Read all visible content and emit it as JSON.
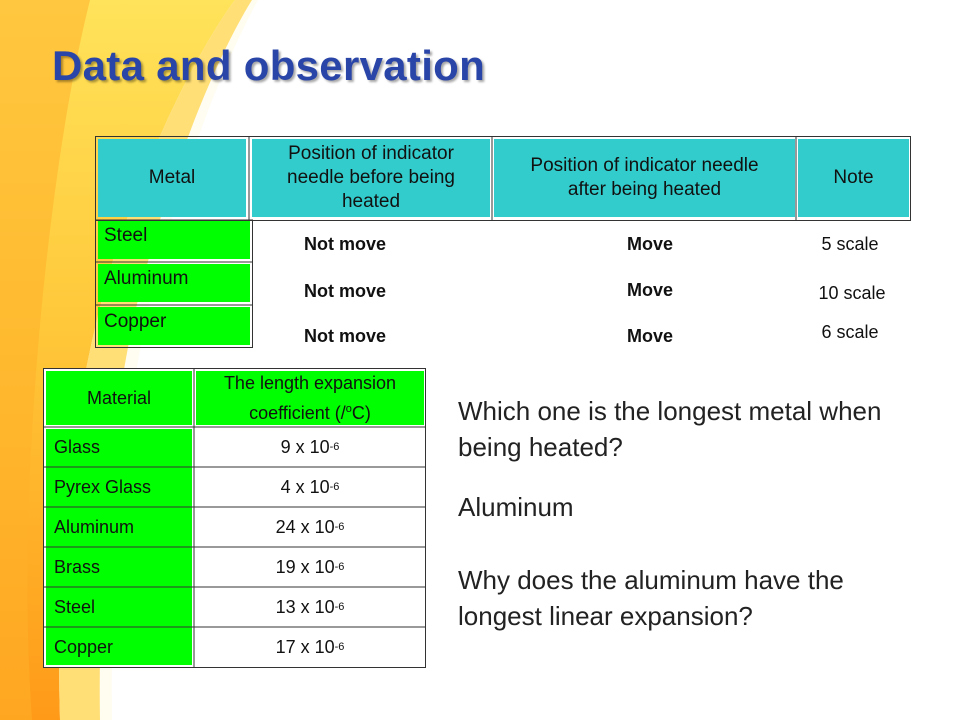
{
  "slide": {
    "title": "Data and observation"
  },
  "table1": {
    "headers": [
      "Metal",
      "Position of indicator needle before being heated",
      "Position of indicator needle after being heated",
      "Note"
    ],
    "rows": [
      {
        "metal": "Steel",
        "before": "Not move",
        "after": "Move",
        "note": "5 scale"
      },
      {
        "metal": "Aluminum",
        "before": "Not move",
        "after": "Move",
        "note": "10 scale"
      },
      {
        "metal": "Copper",
        "before": "Not move",
        "after": "Move",
        "note": "6 scale"
      }
    ]
  },
  "table2": {
    "headers": {
      "material": "Material",
      "coef_line1": "The length expansion",
      "coef_line2": "coefficient (/",
      "coef_unit_sup": "o",
      "coef_unit": "C)"
    },
    "rows": [
      {
        "material": "Glass",
        "base": "9 x 10",
        "exp": "-6"
      },
      {
        "material": "Pyrex Glass",
        "base": "4 x 10",
        "exp": "-6"
      },
      {
        "material": "Aluminum",
        "base": "24 x 10",
        "exp": "-6"
      },
      {
        "material": "Brass",
        "base": "19 x 10",
        "exp": "-6"
      },
      {
        "material": "Steel",
        "base": "13 x 10",
        "exp": "-6"
      },
      {
        "material": "Copper",
        "base": "17 x 10",
        "exp": "-6"
      }
    ]
  },
  "qa": {
    "question1": "Which one is the longest metal when being heated?",
    "answer1": "Aluminum",
    "question2": "Why does the aluminum have the longest linear expansion?"
  },
  "colors": {
    "title": "#2a45a8",
    "table1_header": "#33cccc",
    "table1_metal_cells": "#00ff00",
    "table2_cells": "#00ff00",
    "background_accent": "#ffcc33"
  }
}
